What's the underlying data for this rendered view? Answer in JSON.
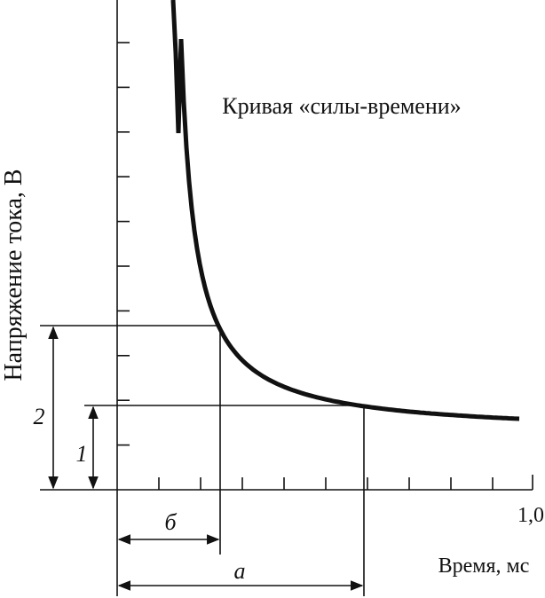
{
  "title": "Кривая «силы-времени»",
  "y_axis_label": "Напряжение тока, В",
  "x_axis_label": "Время, мс",
  "x_end_label": "1,0",
  "interval_b": "б",
  "interval_a": "а",
  "level_1": "1",
  "level_2": "2"
}
